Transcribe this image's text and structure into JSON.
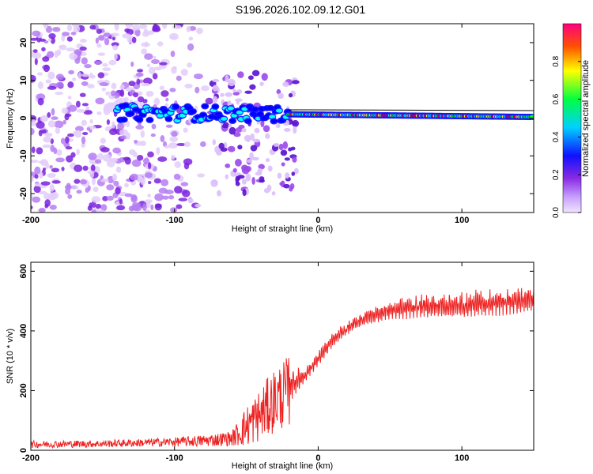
{
  "chart_data": [
    {
      "type": "heatmap",
      "title": "S196.2026.102.09.12.G01",
      "xlabel": "Height of straight line (km)",
      "ylabel": "Frequency (Hz)",
      "xlim": [
        -200,
        150
      ],
      "ylim": [
        -25,
        25
      ],
      "xticks": [
        -200,
        -100,
        0,
        100
      ],
      "xtick_labels": [
        "-200",
        "-100",
        "0",
        "100"
      ],
      "yticks": [
        -20,
        -10,
        0,
        10,
        20
      ],
      "ytick_labels": [
        "-20",
        "-10",
        "0",
        "10",
        "20"
      ],
      "colorbar": {
        "label": "Normalized spectral amplitude",
        "range": [
          0,
          1
        ],
        "ticks": [
          0.0,
          0.2,
          0.4,
          0.6,
          0.8
        ],
        "tick_labels": [
          "0.0",
          "0.2",
          "0.4",
          "0.6",
          "0.8"
        ],
        "colormap": [
          "#e6d2ff",
          "#8a2be2",
          "#0000ff",
          "#00ffff",
          "#00ff00",
          "#ffff00",
          "#ff0000",
          "#ff0080"
        ]
      },
      "features": [
        {
          "name": "noise-cloud",
          "x_range": [
            -200,
            -70
          ],
          "y_range": [
            -25,
            25
          ],
          "amplitude": 0.1
        },
        {
          "name": "scattered-tracks",
          "x_range": [
            -75,
            -15
          ],
          "y_range": [
            -20,
            12
          ],
          "amplitude": 0.25
        },
        {
          "name": "main-tone",
          "x_range": [
            -140,
            150
          ],
          "frequency_hz": [
            1.5,
            0.3
          ],
          "amplitude": 0.8
        }
      ]
    },
    {
      "type": "line",
      "title": "",
      "xlabel": "Height of straight line (km)",
      "ylabel": "SNR (10 * v/v)",
      "xlim": [
        -200,
        150
      ],
      "ylim": [
        0,
        630
      ],
      "xticks": [
        -200,
        -100,
        0,
        100
      ],
      "xtick_labels": [
        "-200",
        "-100",
        "0",
        "100"
      ],
      "yticks": [
        0,
        200,
        400,
        600
      ],
      "ytick_labels": [
        "0",
        "200",
        "400",
        "600"
      ],
      "series": [
        {
          "name": "SNR",
          "color": "#ee2222",
          "x": [
            -200,
            -150,
            -100,
            -80,
            -60,
            -50,
            -40,
            -30,
            -20,
            -10,
            0,
            10,
            20,
            30,
            50,
            70,
            100,
            120,
            150
          ],
          "y": [
            20,
            22,
            28,
            32,
            40,
            80,
            120,
            170,
            200,
            240,
            300,
            360,
            400,
            430,
            460,
            470,
            470,
            480,
            490
          ],
          "amplitude": [
            12,
            12,
            15,
            20,
            25,
            70,
            90,
            110,
            120,
            40,
            45,
            45,
            45,
            50,
            60,
            70,
            80,
            80,
            80
          ]
        }
      ]
    }
  ]
}
